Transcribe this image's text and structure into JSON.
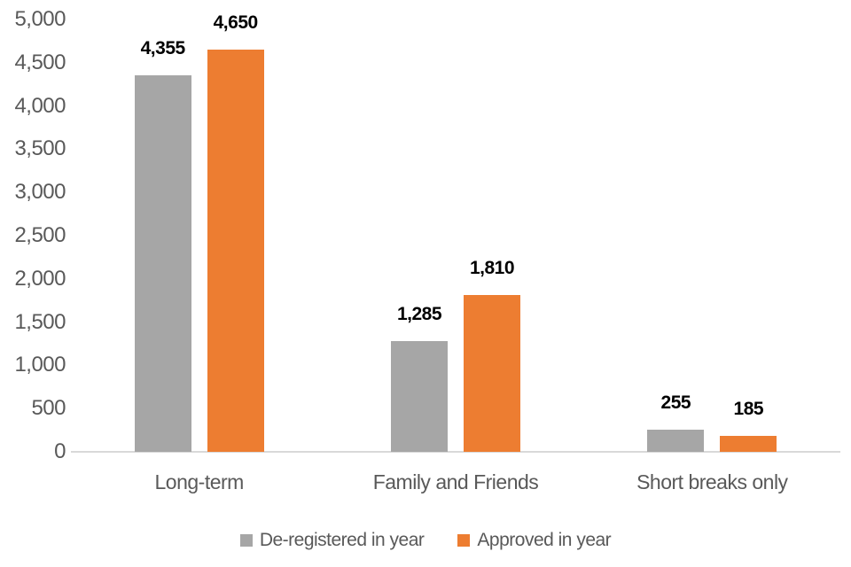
{
  "chart_data": {
    "type": "bar",
    "title": "",
    "xlabel": "",
    "ylabel": "",
    "categories": [
      "Long-term",
      "Family and Friends",
      "Short breaks only"
    ],
    "series": [
      {
        "name": "De-registered in year",
        "color": "#a6a6a6",
        "values": [
          4355,
          1285,
          255
        ],
        "labels": [
          "4,355",
          "1,285",
          "255"
        ]
      },
      {
        "name": "Approved in year",
        "color": "#ed7d31",
        "values": [
          4650,
          1810,
          185
        ],
        "labels": [
          "4,650",
          "1,810",
          "185"
        ]
      }
    ],
    "ylim": [
      0,
      5000
    ],
    "ytick_step": 500,
    "ytick_labels": [
      "0",
      "500",
      "1,000",
      "1,500",
      "2,000",
      "2,500",
      "3,000",
      "3,500",
      "4,000",
      "4,500",
      "5,000"
    ],
    "grid": false,
    "legend_position": "bottom",
    "colors": {
      "axis_line": "#d9d9d9",
      "tick_label": "#595959",
      "data_label": "#000000",
      "background": "#ffffff"
    }
  }
}
